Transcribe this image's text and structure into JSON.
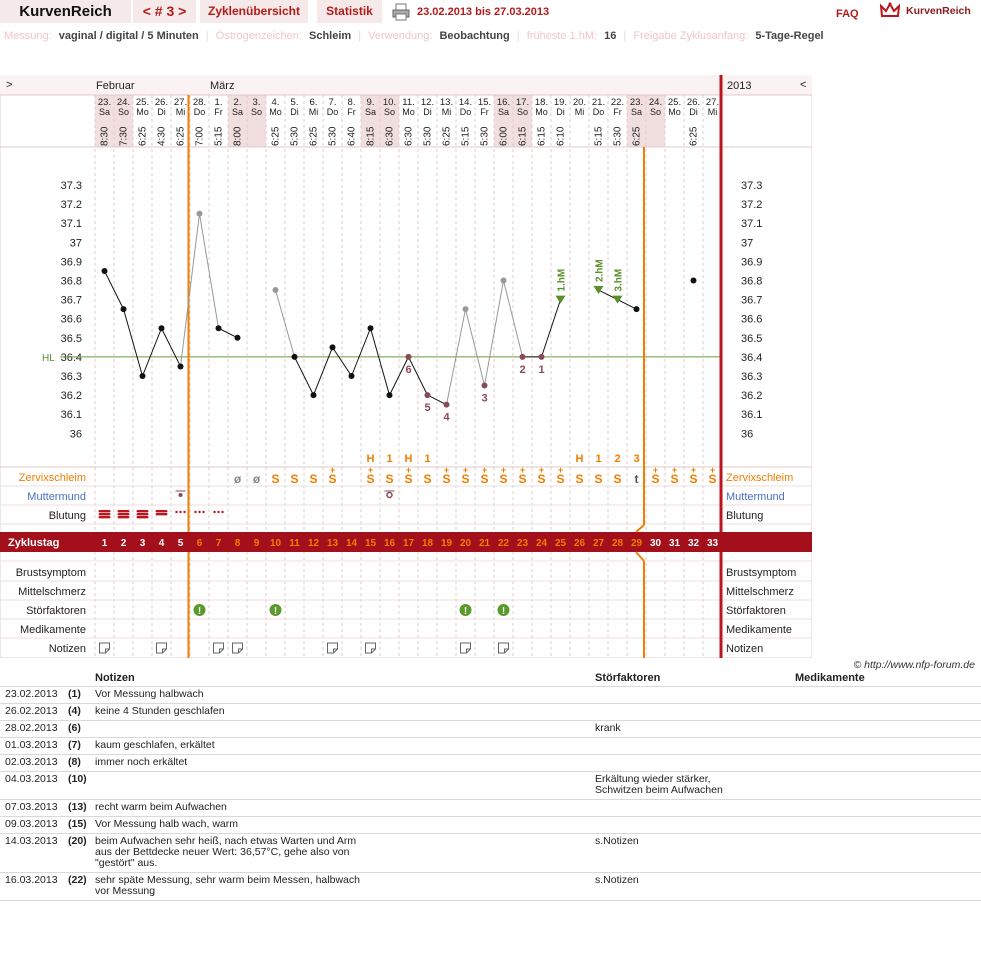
{
  "header": {
    "app_title": "KurvenReich",
    "cycle_nav": "< # 3 >",
    "tab_overview": "Zyklenübersicht",
    "tab_stats": "Statistik",
    "date_range": "23.02.2013 bis 27.03.2013",
    "faq": "FAQ",
    "logo_text": "KurvenReich"
  },
  "meta": {
    "measure_label": "Messung:",
    "measure_value": "vaginal / digital / 5 Minuten",
    "estrogen_label": "Östrogenzeichen:",
    "estrogen_value": "Schleim",
    "usage_label": "Verwendung:",
    "usage_value": "Beobachtung",
    "first_label": "früheste 1.hM:",
    "first_value": "16",
    "release_label": "Freigabe Zyklusanfang:",
    "release_value": "5-Tage-Regel"
  },
  "chart": {
    "nav_left": ">",
    "nav_right": "<",
    "month_feb": "Februar",
    "month_mar": "März",
    "year": "2013",
    "hl_label": "HL",
    "y_ticks": [
      "37.3",
      "37.2",
      "37.1",
      "37",
      "36.9",
      "36.8",
      "36.7",
      "36.6",
      "36.5",
      "36.4",
      "36.3",
      "36.2",
      "36.1",
      "36"
    ],
    "days": [
      {
        "d": "23.",
        "w": "Sa",
        "t": "8:30"
      },
      {
        "d": "24.",
        "w": "So",
        "t": "7:30"
      },
      {
        "d": "25.",
        "w": "Mo",
        "t": "6:25"
      },
      {
        "d": "26.",
        "w": "Di",
        "t": "4:30"
      },
      {
        "d": "27.",
        "w": "Mi",
        "t": "6:25"
      },
      {
        "d": "28.",
        "w": "Do",
        "t": "7:00"
      },
      {
        "d": "1.",
        "w": "Fr",
        "t": "5:15"
      },
      {
        "d": "2.",
        "w": "Sa",
        "t": "8:00"
      },
      {
        "d": "3.",
        "w": "So",
        "t": ""
      },
      {
        "d": "4.",
        "w": "Mo",
        "t": "6:25"
      },
      {
        "d": "5.",
        "w": "Di",
        "t": "5:30"
      },
      {
        "d": "6.",
        "w": "Mi",
        "t": "6:25"
      },
      {
        "d": "7.",
        "w": "Do",
        "t": "5:30"
      },
      {
        "d": "8.",
        "w": "Fr",
        "t": "6:40"
      },
      {
        "d": "9.",
        "w": "Sa",
        "t": "8:15"
      },
      {
        "d": "10.",
        "w": "So",
        "t": "6:30"
      },
      {
        "d": "11.",
        "w": "Mo",
        "t": "6:30"
      },
      {
        "d": "12.",
        "w": "Di",
        "t": "5:30"
      },
      {
        "d": "13.",
        "w": "Mi",
        "t": "6:25"
      },
      {
        "d": "14.",
        "w": "Do",
        "t": "5:15"
      },
      {
        "d": "15.",
        "w": "Fr",
        "t": "5:30"
      },
      {
        "d": "16.",
        "w": "Sa",
        "t": "6:00"
      },
      {
        "d": "17.",
        "w": "So",
        "t": "6:15"
      },
      {
        "d": "18.",
        "w": "Mo",
        "t": "6:15"
      },
      {
        "d": "19.",
        "w": "Di",
        "t": "6:10"
      },
      {
        "d": "20.",
        "w": "Mi",
        "t": ""
      },
      {
        "d": "21.",
        "w": "Do",
        "t": "5:15"
      },
      {
        "d": "22.",
        "w": "Fr",
        "t": "5:30"
      },
      {
        "d": "23.",
        "w": "Sa",
        "t": "6:25"
      },
      {
        "d": "24.",
        "w": "So",
        "t": ""
      },
      {
        "d": "25.",
        "w": "Mo",
        "t": ""
      },
      {
        "d": "26.",
        "w": "Di",
        "t": "6:25"
      },
      {
        "d": "27.",
        "w": "Mi",
        "t": ""
      }
    ],
    "weekend_cols": [
      0,
      1,
      7,
      8,
      14,
      15,
      21,
      22,
      28,
      29
    ],
    "temps": [
      36.85,
      36.65,
      36.3,
      36.55,
      36.35,
      37.15,
      36.55,
      36.5,
      null,
      36.75,
      36.4,
      36.2,
      36.45,
      36.3,
      36.55,
      36.2,
      36.4,
      36.2,
      36.15,
      36.65,
      36.25,
      36.8,
      36.4,
      36.4,
      36.7,
      null,
      36.75,
      36.7,
      36.65,
      null,
      null,
      36.8,
      null
    ],
    "gray_points": [
      5,
      9,
      19,
      21
    ],
    "excluded_points": [
      16,
      17,
      18,
      20,
      22,
      23
    ],
    "hm_points": [
      24,
      26,
      27
    ],
    "low_numbers": [
      {
        "col": 16,
        "label": "6"
      },
      {
        "col": 17,
        "label": "5"
      },
      {
        "col": 18,
        "label": "4"
      },
      {
        "col": 20,
        "label": "3"
      },
      {
        "col": 22,
        "label": "2"
      },
      {
        "col": 23,
        "label": "1"
      }
    ],
    "hm_labels": [
      {
        "col": 24,
        "label": "1.hM"
      },
      {
        "col": 26,
        "label": "2.hM"
      },
      {
        "col": 27,
        "label": "3.hM"
      }
    ],
    "mucus_markers": [
      {
        "col": 14,
        "label": "H"
      },
      {
        "col": 15,
        "label": "1"
      },
      {
        "col": 16,
        "label": "H"
      },
      {
        "col": 17,
        "label": "1"
      },
      {
        "col": 25,
        "label": "H"
      },
      {
        "col": 26,
        "label": "1"
      },
      {
        "col": 27,
        "label": "2"
      },
      {
        "col": 28,
        "label": "3"
      }
    ],
    "mucus": [
      "",
      "",
      "",
      "",
      "",
      "",
      "",
      "ø",
      "ø",
      "S",
      "S",
      "S",
      "S+",
      "",
      "S+",
      "S",
      "S+",
      "S",
      "S+",
      "S+",
      "S+",
      "S+",
      "S+",
      "S+",
      "S+",
      "S",
      "S",
      "S",
      "t",
      "S+",
      "S+",
      "S+",
      "S+"
    ],
    "row_labels": {
      "zervix": "Zervixschleim",
      "muttermund": "Muttermund",
      "blutung": "Blutung",
      "zyklustag": "Zyklustag",
      "brust": "Brustsymptom",
      "mittel": "Mittelschmerz",
      "stoer": "Störfaktoren",
      "medi": "Medikamente",
      "notiz": "Notizen"
    },
    "cycle_days": [
      "1",
      "2",
      "3",
      "4",
      "5",
      "6",
      "7",
      "8",
      "9",
      "10",
      "11",
      "12",
      "13",
      "14",
      "15",
      "16",
      "17",
      "18",
      "19",
      "20",
      "21",
      "22",
      "23",
      "24",
      "25",
      "26",
      "27",
      "28",
      "29",
      "30",
      "31",
      "32",
      "33"
    ],
    "bleeding": [
      3,
      3,
      3,
      2,
      1,
      1,
      1,
      0,
      0,
      0,
      0,
      0,
      0,
      0,
      0,
      0,
      0,
      0,
      0,
      0,
      0,
      0,
      0,
      0,
      0,
      0,
      0,
      0,
      0,
      0,
      0,
      0,
      0
    ],
    "disturb_cols": [
      5,
      9,
      19,
      21
    ],
    "note_cols": [
      0,
      3,
      6,
      7,
      12,
      14,
      19,
      21
    ],
    "colors": {
      "orange": "#f07e00",
      "red": "#c0141c",
      "zyklus_bg": "#a3101c",
      "grid": "#e2c9c9",
      "lowpt": "#8a4a55",
      "hm": "#5a8f2a"
    }
  },
  "credit": "© http://www.nfp-forum.de",
  "notes": {
    "headers": {
      "notizen": "Notizen",
      "stoer": "Störfaktoren",
      "medi": "Medikamente"
    },
    "rows": [
      {
        "date": "23.02.2013",
        "day": "(1)",
        "note": "Vor Messung halbwach",
        "stoer": ""
      },
      {
        "date": "26.02.2013",
        "day": "(4)",
        "note": "keine 4 Stunden geschlafen",
        "stoer": ""
      },
      {
        "date": "28.02.2013",
        "day": "(6)",
        "note": "",
        "stoer": "krank"
      },
      {
        "date": "01.03.2013",
        "day": "(7)",
        "note": "kaum geschlafen, erkältet",
        "stoer": ""
      },
      {
        "date": "02.03.2013",
        "day": "(8)",
        "note": "immer noch erkältet",
        "stoer": ""
      },
      {
        "date": "04.03.2013",
        "day": "(10)",
        "note": "",
        "stoer": "Erkältung wieder stärker,\nSchwitzen beim Aufwachen"
      },
      {
        "date": "07.03.2013",
        "day": "(13)",
        "note": "recht warm beim Aufwachen",
        "stoer": ""
      },
      {
        "date": "09.03.2013",
        "day": "(15)",
        "note": "Vor Messung halb wach, warm",
        "stoer": ""
      },
      {
        "date": "14.03.2013",
        "day": "(20)",
        "note": "beim Aufwachen sehr heiß, nach etwas Warten und Arm\naus der Bettdecke neuer Wert: 36,57°C, gehe also von\n\"gestört\" aus.",
        "stoer": "s.Notizen"
      },
      {
        "date": "16.03.2013",
        "day": "(22)",
        "note": "sehr späte Messung, sehr warm beim Messen, halbwach\nvor Messung",
        "stoer": "s.Notizen"
      }
    ]
  }
}
